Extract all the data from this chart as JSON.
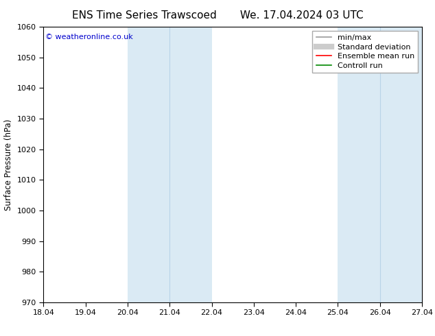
{
  "title_left": "ENS Time Series Trawscoed",
  "title_right": "We. 17.04.2024 03 UTC",
  "ylabel": "Surface Pressure (hPa)",
  "ymin": 970,
  "ymax": 1060,
  "yticks": [
    970,
    980,
    990,
    1000,
    1010,
    1020,
    1030,
    1040,
    1050,
    1060
  ],
  "xticklabels": [
    "18.04",
    "19.04",
    "20.04",
    "21.04",
    "22.04",
    "23.04",
    "24.04",
    "25.04",
    "26.04",
    "27.04"
  ],
  "xtick_positions": [
    0,
    1,
    2,
    3,
    4,
    5,
    6,
    7,
    8,
    9
  ],
  "shaded_bands": [
    {
      "xstart": 2,
      "xend": 4,
      "dividers": [
        3
      ]
    },
    {
      "xstart": 7,
      "xend": 9,
      "dividers": [
        8
      ]
    }
  ],
  "shaded_color": "#daeaf4",
  "divider_color": "#b8d4e8",
  "background_color": "#ffffff",
  "plot_bg_color": "#ffffff",
  "tick_color": "#555555",
  "spine_color": "#000000",
  "watermark": "© weatheronline.co.uk",
  "watermark_color": "#0000cc",
  "legend_entries": [
    {
      "label": "min/max",
      "color": "#999999",
      "lw": 1.2,
      "style": "solid"
    },
    {
      "label": "Standard deviation",
      "color": "#cccccc",
      "lw": 6,
      "style": "solid"
    },
    {
      "label": "Ensemble mean run",
      "color": "#ff0000",
      "lw": 1.2,
      "style": "solid"
    },
    {
      "label": "Controll run",
      "color": "#008800",
      "lw": 1.2,
      "style": "solid"
    }
  ],
  "title_fontsize": 11,
  "axis_label_fontsize": 8.5,
  "tick_fontsize": 8,
  "legend_fontsize": 8,
  "watermark_fontsize": 8
}
